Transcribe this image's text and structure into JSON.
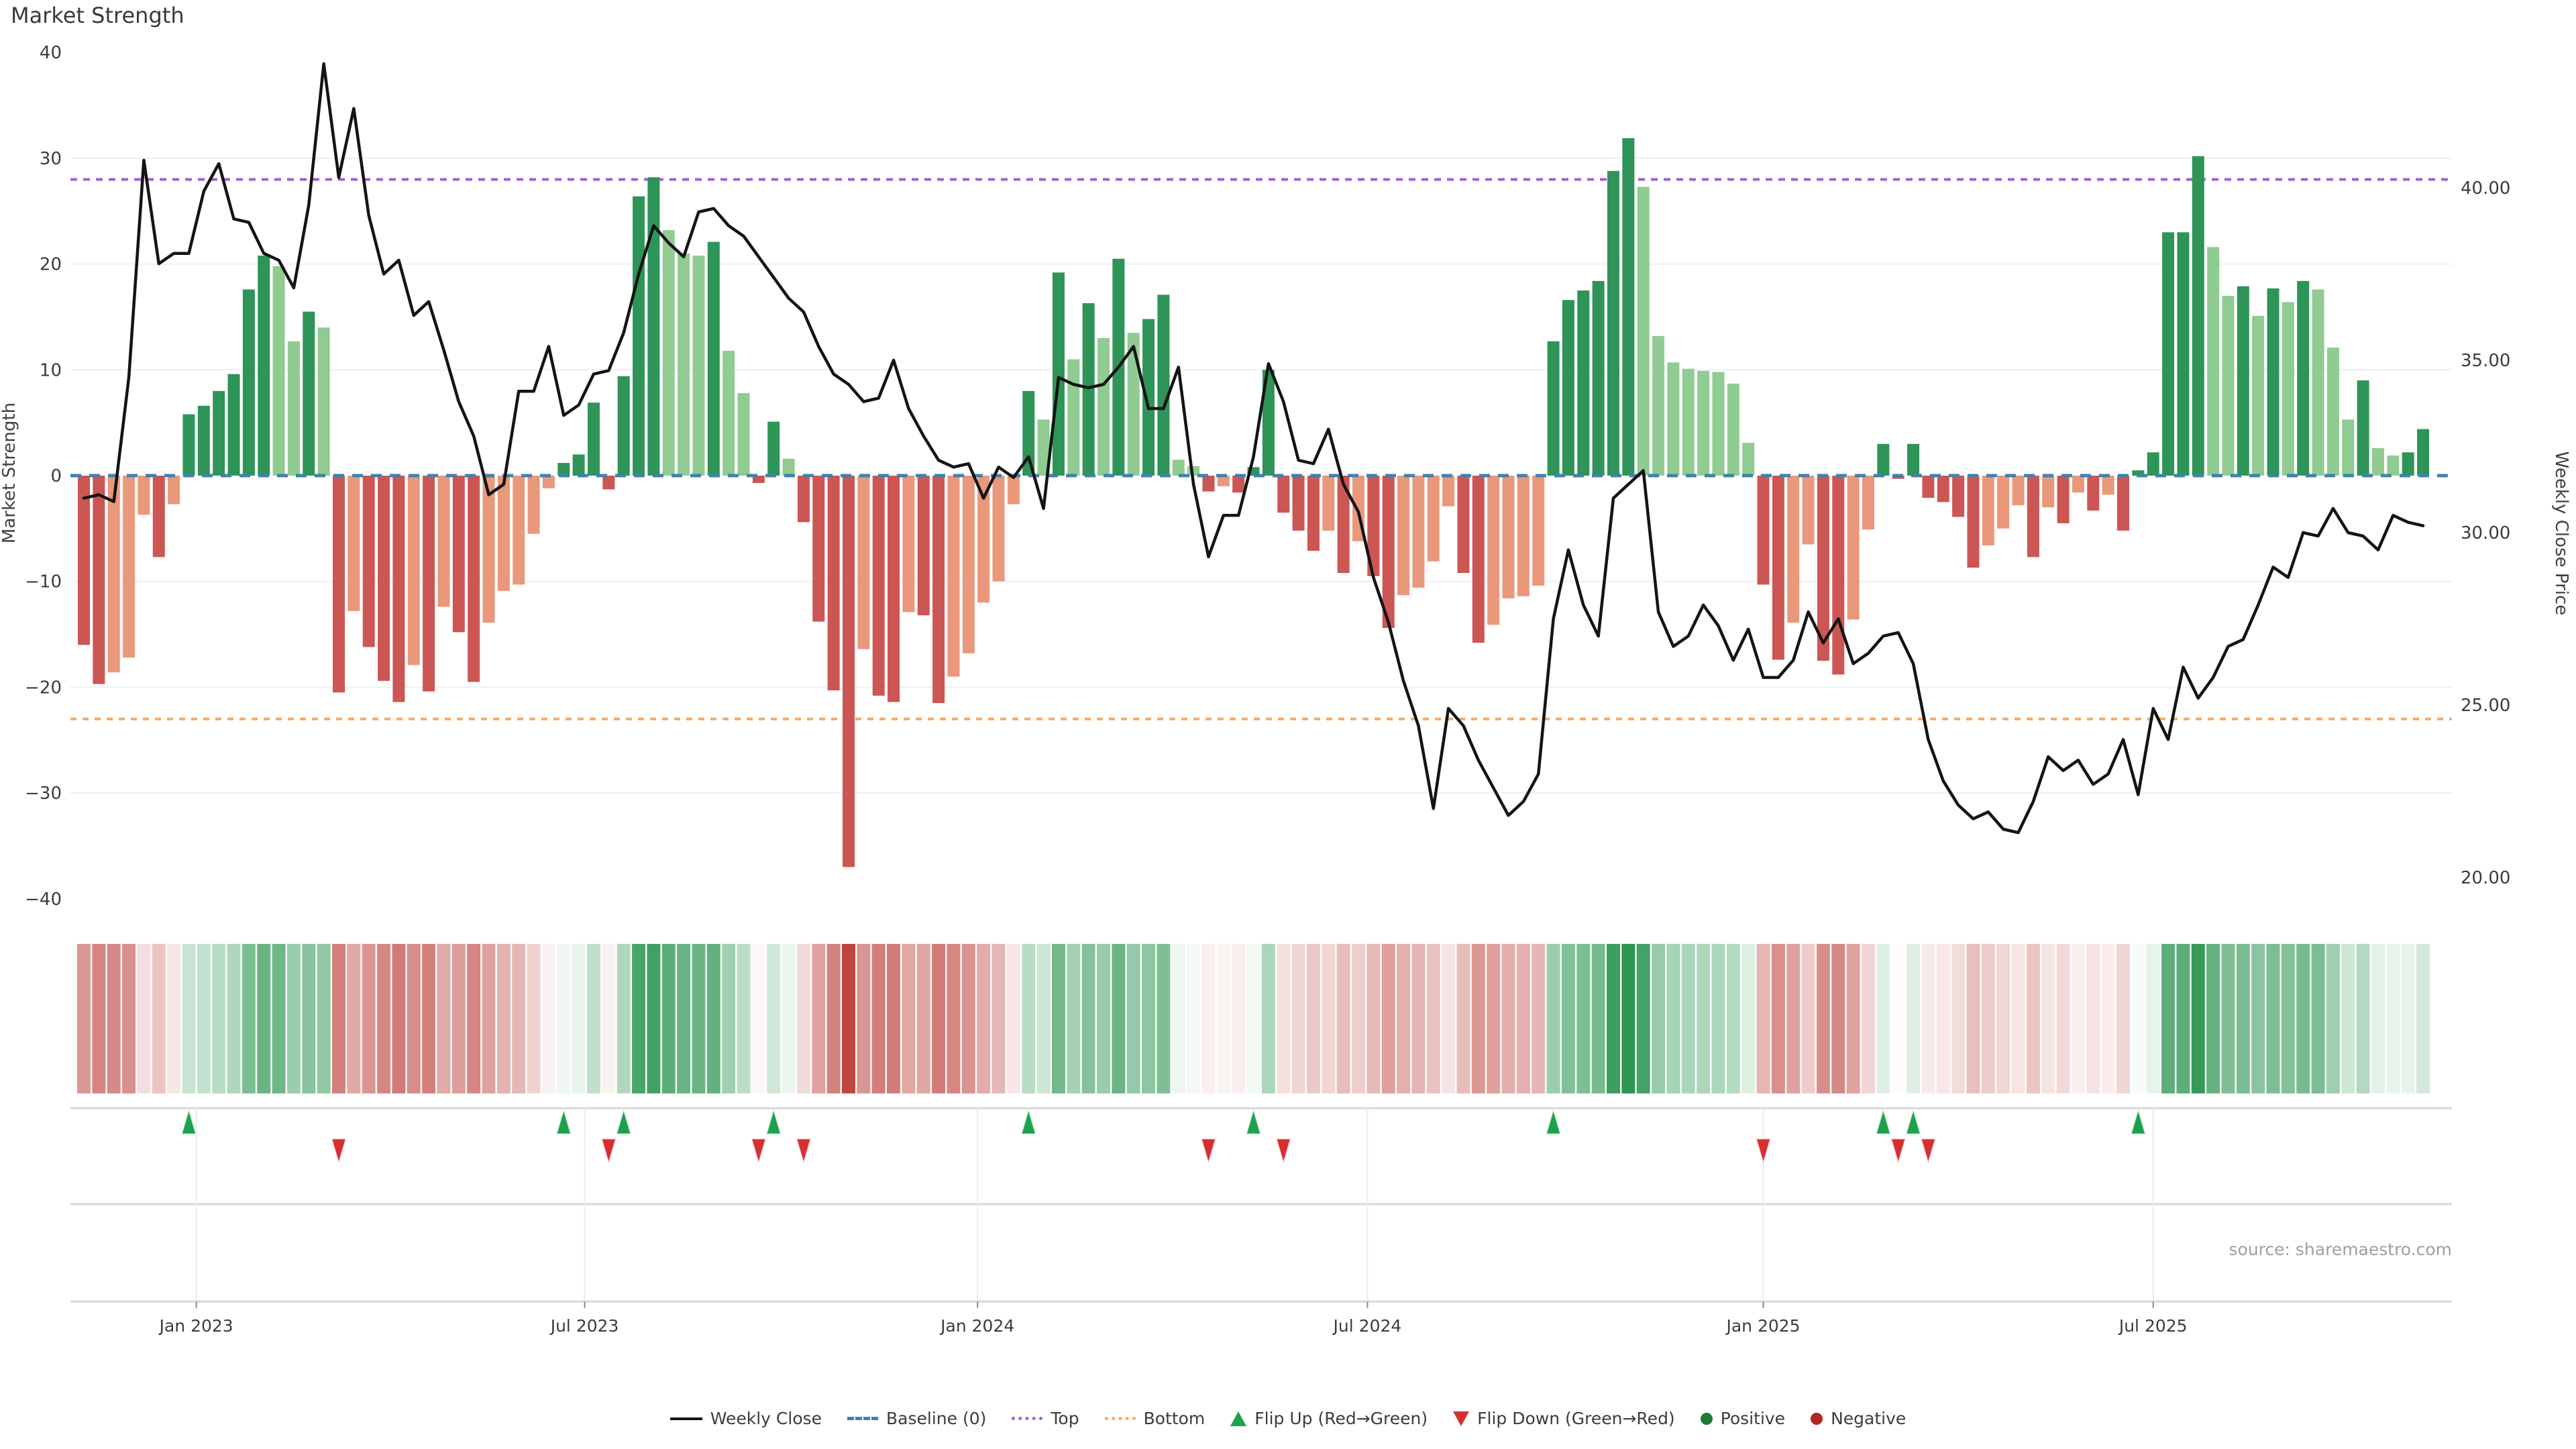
{
  "title": "Market Strength",
  "left_axis": {
    "label": "Market Strength",
    "ticks": [
      {
        "label": "40",
        "value": 40
      },
      {
        "label": "30",
        "value": 30
      },
      {
        "label": "20",
        "value": 20
      },
      {
        "label": "10",
        "value": 10
      },
      {
        "label": "0",
        "value": 0
      },
      {
        "label": "−10",
        "value": -10
      },
      {
        "label": "−20",
        "value": -20
      },
      {
        "label": "−30",
        "value": -30
      },
      {
        "label": "−40",
        "value": -40
      }
    ]
  },
  "right_axis": {
    "label": "Weekly Close Price",
    "ticks": [
      {
        "label": "40.00",
        "value": 40
      },
      {
        "label": "35.00",
        "value": 35
      },
      {
        "label": "30.00",
        "value": 30
      },
      {
        "label": "25.00",
        "value": 25
      },
      {
        "label": "20.00",
        "value": 20
      }
    ]
  },
  "x_axis": {
    "ticks": [
      {
        "label": "Jan 2023",
        "week": 7.5
      },
      {
        "label": "Jul 2023",
        "week": 33.4
      },
      {
        "label": "Jan 2024",
        "week": 59.6
      },
      {
        "label": "Jul 2024",
        "week": 85.6
      },
      {
        "label": "Jan 2025",
        "week": 112.0
      },
      {
        "label": "Jul 2025",
        "week": 138.0
      }
    ]
  },
  "source": "source: sharemaestro.com",
  "legend": [
    {
      "label": "Weekly Close",
      "icon": "line-icon"
    },
    {
      "label": "Baseline (0)",
      "icon": "dashed-line-icon"
    },
    {
      "label": "Top",
      "icon": "dotted-line-icon"
    },
    {
      "label": "Bottom",
      "icon": "dotted-line-icon"
    },
    {
      "label": "Flip Up (Red→Green)",
      "icon": "triangle-up-icon"
    },
    {
      "label": "Flip Down (Green→Red)",
      "icon": "triangle-down-icon"
    },
    {
      "label": "Positive",
      "icon": "circle-icon"
    },
    {
      "label": "Negative",
      "icon": "circle-icon"
    }
  ],
  "colors": {
    "bar_pos_dark": "#2e9457",
    "bar_pos_light": "#90cb91",
    "bar_neg_dark": "#cc5653",
    "bar_neg_light": "#e9987b",
    "line": "#141414",
    "baseline": "#4080b0",
    "top_line": "#a05fd6",
    "bottom_line": "#f5a963",
    "heat_pos": "#27934d",
    "heat_neg": "#bf4540",
    "flip_up": "#1ba24a",
    "flip_down": "#d62f2f",
    "grid": "#eef0f4",
    "spine": "#d8d8d8",
    "tick_text": "#3c3c3c"
  },
  "chart_data": {
    "type": "combo",
    "x_unit": "week",
    "n_weeks": 157,
    "baseline": 0,
    "top": 28,
    "bottom": -23,
    "left_ylim": [
      -40,
      40
    ],
    "right_ylim": [
      19.4,
      43.9
    ],
    "grid": "horizontal",
    "legend_position": "bottom-center",
    "series": [
      {
        "name": "Market Strength",
        "type": "bar",
        "axis": "left",
        "values": [
          -16.0,
          -19.7,
          -18.6,
          -17.2,
          -3.7,
          -7.7,
          -2.7,
          5.8,
          6.6,
          8.0,
          9.6,
          17.6,
          20.8,
          19.8,
          12.7,
          15.5,
          14.0,
          -20.5,
          -12.8,
          -16.2,
          -19.4,
          -21.4,
          -17.9,
          -20.4,
          -12.4,
          -14.8,
          -19.5,
          -13.9,
          -10.9,
          -10.3,
          -5.5,
          -1.2,
          1.2,
          2.0,
          6.9,
          -1.3,
          9.4,
          26.4,
          28.2,
          23.2,
          21.0,
          20.8,
          22.1,
          11.8,
          7.8,
          -0.7,
          5.1,
          1.6,
          -4.4,
          -13.8,
          -20.3,
          -37.0,
          -16.4,
          -20.8,
          -21.4,
          -12.9,
          -13.2,
          -21.5,
          -19.0,
          -16.8,
          -12.0,
          -10.0,
          -2.7,
          8.0,
          5.3,
          19.2,
          11.0,
          16.3,
          13.0,
          20.5,
          13.5,
          14.8,
          17.1,
          1.5,
          0.9,
          -1.5,
          -1.0,
          -1.6,
          0.8,
          10.0,
          -3.5,
          -5.2,
          -7.1,
          -5.2,
          -9.2,
          -6.2,
          -9.5,
          -14.4,
          -11.3,
          -10.6,
          -8.1,
          -2.9,
          -9.2,
          -15.8,
          -14.1,
          -11.6,
          -11.4,
          -10.4,
          12.7,
          16.6,
          17.5,
          18.4,
          28.8,
          31.9,
          27.3,
          13.2,
          10.7,
          10.1,
          9.9,
          9.8,
          8.7,
          3.1,
          -10.3,
          -17.4,
          -13.9,
          -6.5,
          -17.5,
          -18.8,
          -13.6,
          -5.1,
          3.0,
          -0.3,
          3.0,
          -2.1,
          -2.5,
          -3.9,
          -8.7,
          -6.6,
          -5.0,
          -2.8,
          -7.7,
          -3.0,
          -4.5,
          -1.6,
          -3.3,
          -1.8,
          -5.2,
          0.5,
          2.2,
          23.0,
          23.0,
          30.2,
          21.6,
          17.0,
          17.9,
          15.1,
          17.7,
          16.4,
          18.4,
          17.6,
          12.1,
          5.3,
          9.0,
          2.6,
          1.9,
          2.2,
          4.4
        ]
      },
      {
        "name": "Weekly Close",
        "type": "line",
        "axis": "right",
        "values": [
          31.0,
          31.1,
          30.9,
          34.5,
          40.8,
          37.8,
          38.1,
          38.1,
          39.9,
          40.7,
          39.1,
          39.0,
          38.1,
          37.9,
          37.1,
          39.5,
          43.6,
          40.3,
          42.3,
          39.2,
          37.5,
          37.9,
          36.3,
          36.7,
          35.3,
          33.8,
          32.8,
          31.1,
          31.4,
          34.1,
          34.1,
          35.4,
          33.4,
          33.7,
          34.6,
          34.7,
          35.8,
          37.5,
          38.9,
          38.4,
          38.0,
          39.3,
          39.4,
          38.9,
          38.6,
          38.0,
          37.4,
          36.8,
          36.4,
          35.4,
          34.6,
          34.3,
          33.8,
          33.9,
          35.0,
          33.6,
          32.8,
          32.1,
          31.9,
          32.0,
          31.0,
          31.9,
          31.6,
          32.2,
          30.7,
          34.5,
          34.3,
          34.2,
          34.3,
          34.8,
          35.4,
          33.6,
          33.6,
          34.8,
          31.4,
          29.3,
          30.5,
          30.5,
          32.2,
          34.9,
          33.8,
          32.1,
          32.0,
          33.0,
          31.4,
          30.6,
          28.7,
          27.4,
          25.7,
          24.4,
          22.0,
          24.9,
          24.4,
          23.4,
          22.6,
          21.8,
          22.2,
          23.0,
          27.5,
          29.5,
          27.9,
          27.0,
          31.0,
          31.4,
          31.8,
          27.7,
          26.7,
          27.0,
          27.9,
          27.3,
          26.3,
          27.2,
          25.8,
          25.8,
          26.3,
          27.7,
          26.8,
          27.5,
          26.2,
          26.5,
          27.0,
          27.1,
          26.2,
          24.0,
          22.8,
          22.1,
          21.7,
          21.9,
          21.4,
          21.3,
          22.2,
          23.5,
          23.1,
          23.4,
          22.7,
          23.0,
          24.0,
          22.4,
          24.9,
          24.0,
          26.1,
          25.2,
          25.8,
          26.7,
          26.9,
          27.9,
          29.0,
          28.7,
          30.0,
          29.9,
          30.7,
          30.0,
          29.9,
          29.5,
          30.5,
          30.3,
          30.2
        ]
      }
    ],
    "heatmap": {
      "note": "weekly strength values rendered as red-white-green strip",
      "source_series": "Market Strength"
    },
    "flip_up_weeks": [
      7,
      32,
      36,
      46,
      63,
      78,
      98,
      120,
      122,
      137
    ],
    "flip_down_weeks": [
      17,
      35,
      45,
      48,
      75,
      80,
      112,
      121,
      123
    ]
  }
}
